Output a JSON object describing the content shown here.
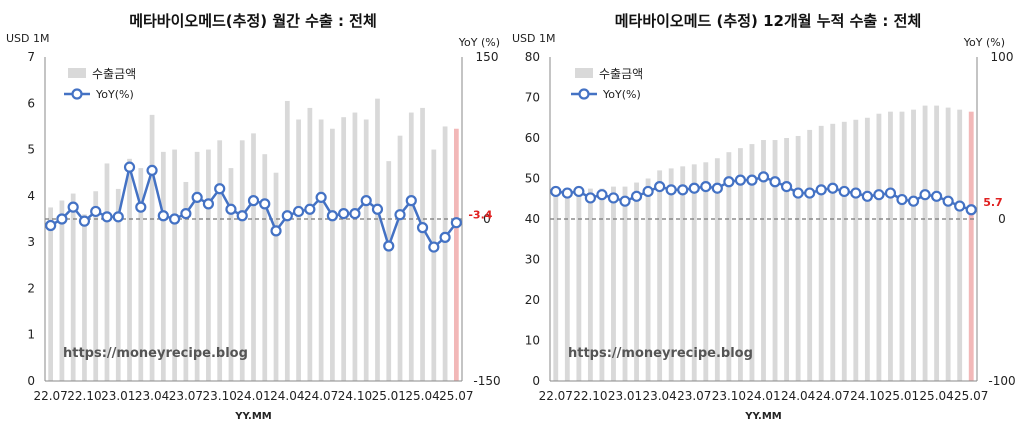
{
  "watermark": "https://moneyrecipe.blog",
  "chart_data": [
    {
      "type": "bar+line",
      "title": "메타바이오메드(추정) 월간 수출 : 전체",
      "left_unit": "USD 1M",
      "right_unit": "YoY (%)",
      "xlabel": "YY.MM",
      "ylim_left": [
        0,
        7
      ],
      "left_ticks": [
        "0",
        "1",
        "2",
        "3",
        "4",
        "5",
        "6",
        "7"
      ],
      "ylim_right": [
        -150,
        150
      ],
      "right_ticks": [
        "150",
        "0",
        "-150"
      ],
      "x_tick_labels": [
        "22.07",
        "22.10",
        "23.01",
        "23.04",
        "23.07",
        "23.10",
        "24.01",
        "24.04",
        "24.07",
        "24.10",
        "25.01",
        "25.04",
        "25.07"
      ],
      "x_tick_every": 3,
      "legend": [
        "수출금액",
        "YoY(%)"
      ],
      "last_label": "-3.4",
      "bar_color": "#d9d9d9",
      "highlight_color": "#f2b8b8",
      "line_color": "#4472c4",
      "categories": [
        "22.07",
        "22.08",
        "22.09",
        "22.10",
        "22.11",
        "22.12",
        "23.01",
        "23.02",
        "23.03",
        "23.04",
        "23.05",
        "23.06",
        "23.07",
        "23.08",
        "23.09",
        "23.10",
        "23.11",
        "23.12",
        "24.01",
        "24.02",
        "24.03",
        "24.04",
        "24.05",
        "24.06",
        "24.07",
        "24.08",
        "24.09",
        "24.10",
        "24.11",
        "24.12",
        "25.01",
        "25.02",
        "25.03",
        "25.04",
        "25.05",
        "25.06",
        "25.07"
      ],
      "series": [
        {
          "name": "수출금액",
          "values": [
            3.75,
            3.9,
            4.05,
            3.6,
            4.1,
            4.7,
            4.15,
            4.8,
            4.6,
            5.75,
            4.95,
            5.0,
            4.3,
            4.95,
            5.0,
            5.2,
            4.6,
            5.2,
            5.35,
            4.9,
            4.5,
            6.05,
            5.65,
            5.9,
            5.65,
            5.45,
            5.7,
            5.8,
            5.65,
            6.1,
            4.75,
            5.3,
            5.8,
            5.9,
            5.0,
            5.5,
            5.45
          ]
        },
        {
          "name": "YoY(%)",
          "values": [
            -6,
            0,
            11,
            -2,
            7,
            2,
            2,
            48,
            11,
            45,
            3,
            0,
            5,
            20,
            14,
            28,
            9,
            3,
            17,
            14,
            -11,
            3,
            7,
            9,
            20,
            3,
            5,
            5,
            17,
            9,
            -25,
            4,
            17,
            -8,
            -26,
            -17,
            -3.4
          ]
        }
      ]
    },
    {
      "type": "bar+line",
      "title": "메타바이오메드 (추정) 12개월 누적 수출 : 전체",
      "left_unit": "USD 1M",
      "right_unit": "YoY (%)",
      "xlabel": "YY.MM",
      "ylim_left": [
        0,
        80
      ],
      "left_ticks": [
        "0",
        "10",
        "20",
        "30",
        "40",
        "50",
        "60",
        "70",
        "80"
      ],
      "ylim_right": [
        -100,
        100
      ],
      "right_ticks": [
        "100",
        "0",
        "-100"
      ],
      "x_tick_labels": [
        "22.07",
        "22.10",
        "23.01",
        "23.04",
        "23.07",
        "23.10",
        "24.01",
        "24.04",
        "24.07",
        "24.10",
        "25.01",
        "25.04",
        "25.07"
      ],
      "x_tick_every": 3,
      "legend": [
        "수출금액",
        "YoY(%)"
      ],
      "last_label": "5.7",
      "bar_color": "#d9d9d9",
      "highlight_color": "#f2b8b8",
      "line_color": "#4472c4",
      "categories": [
        "22.07",
        "22.08",
        "22.09",
        "22.10",
        "22.11",
        "22.12",
        "23.01",
        "23.02",
        "23.03",
        "23.04",
        "23.05",
        "23.06",
        "23.07",
        "23.08",
        "23.09",
        "23.10",
        "23.11",
        "23.12",
        "24.01",
        "24.02",
        "24.03",
        "24.04",
        "24.05",
        "24.06",
        "24.07",
        "24.08",
        "24.09",
        "24.10",
        "24.11",
        "24.12",
        "25.01",
        "25.02",
        "25.03",
        "25.04",
        "25.05",
        "25.06",
        "25.07"
      ],
      "series": [
        {
          "name": "수출금액",
          "values": [
            47,
            47,
            47.5,
            47.5,
            47.5,
            48,
            48,
            49,
            50,
            52,
            52.5,
            53,
            53.5,
            54,
            55,
            56.5,
            57.5,
            58.5,
            59.5,
            59.5,
            60,
            60.5,
            62,
            63,
            63.5,
            64,
            64.5,
            65,
            66,
            66.5,
            66.5,
            67,
            68,
            68,
            67.5,
            67,
            66.5
          ]
        },
        {
          "name": "YoY(%)",
          "values": [
            17,
            16,
            17,
            13,
            15,
            13,
            11,
            14,
            17,
            20,
            18,
            18,
            19,
            20,
            19,
            23,
            24,
            24,
            26,
            23,
            20,
            16,
            16,
            18,
            19,
            17,
            16,
            14,
            15,
            16,
            12,
            11,
            15,
            14,
            11,
            8,
            5.7
          ]
        }
      ]
    }
  ]
}
